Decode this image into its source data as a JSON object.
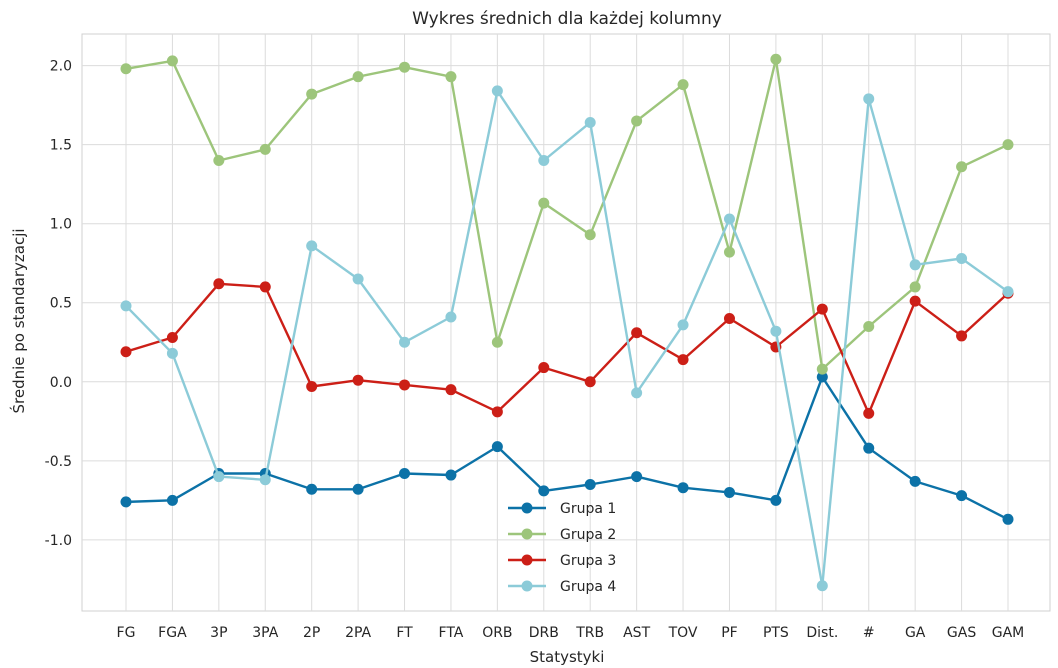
{
  "chart_data": {
    "type": "line",
    "title": "Wykres średnich dla każdej kolumny",
    "xlabel": "Statystyki",
    "ylabel": "Średnie po standaryzacji",
    "categories": [
      "FG",
      "FGA",
      "3P",
      "3PA",
      "2P",
      "2PA",
      "FT",
      "FTA",
      "ORB",
      "DRB",
      "TRB",
      "AST",
      "TOV",
      "PF",
      "PTS",
      "Dist.",
      "#",
      "GA",
      "GAS",
      "GAM"
    ],
    "yticks": [
      "2.0",
      "1.5",
      "1.0",
      "0.5",
      "0.0",
      "-0.5",
      "-1.0"
    ],
    "ytick_values": [
      2.0,
      1.5,
      1.0,
      0.5,
      0.0,
      -0.5,
      -1.0
    ],
    "ylim": [
      -1.45,
      2.2
    ],
    "grid": true,
    "legend_placement": "bottom-center",
    "series": [
      {
        "name": "Grupa 1",
        "color": "#0c72a7",
        "values": [
          -0.76,
          -0.75,
          -0.58,
          -0.58,
          -0.68,
          -0.68,
          -0.58,
          -0.59,
          -0.41,
          -0.69,
          -0.65,
          -0.6,
          -0.67,
          -0.7,
          -0.75,
          0.03,
          -0.42,
          -0.63,
          -0.72,
          -0.87
        ]
      },
      {
        "name": "Grupa 2",
        "color": "#9dc57b",
        "values": [
          1.98,
          2.03,
          1.4,
          1.47,
          1.82,
          1.93,
          1.99,
          1.93,
          0.25,
          1.13,
          0.93,
          1.65,
          1.88,
          0.82,
          2.04,
          0.08,
          0.35,
          0.6,
          1.36,
          1.5
        ]
      },
      {
        "name": "Grupa 3",
        "color": "#cc1f17",
        "values": [
          0.19,
          0.28,
          0.62,
          0.6,
          -0.03,
          0.01,
          -0.02,
          -0.05,
          -0.19,
          0.09,
          0.0,
          0.31,
          0.14,
          0.4,
          0.22,
          0.46,
          -0.2,
          0.51,
          0.29,
          0.56
        ]
      },
      {
        "name": "Grupa 4",
        "color": "#8ccbd8",
        "values": [
          0.48,
          0.18,
          -0.6,
          -0.62,
          0.86,
          0.65,
          0.25,
          0.41,
          1.84,
          1.4,
          1.64,
          -0.07,
          0.36,
          1.03,
          0.32,
          -1.29,
          1.79,
          0.74,
          0.78,
          0.57
        ]
      }
    ]
  }
}
